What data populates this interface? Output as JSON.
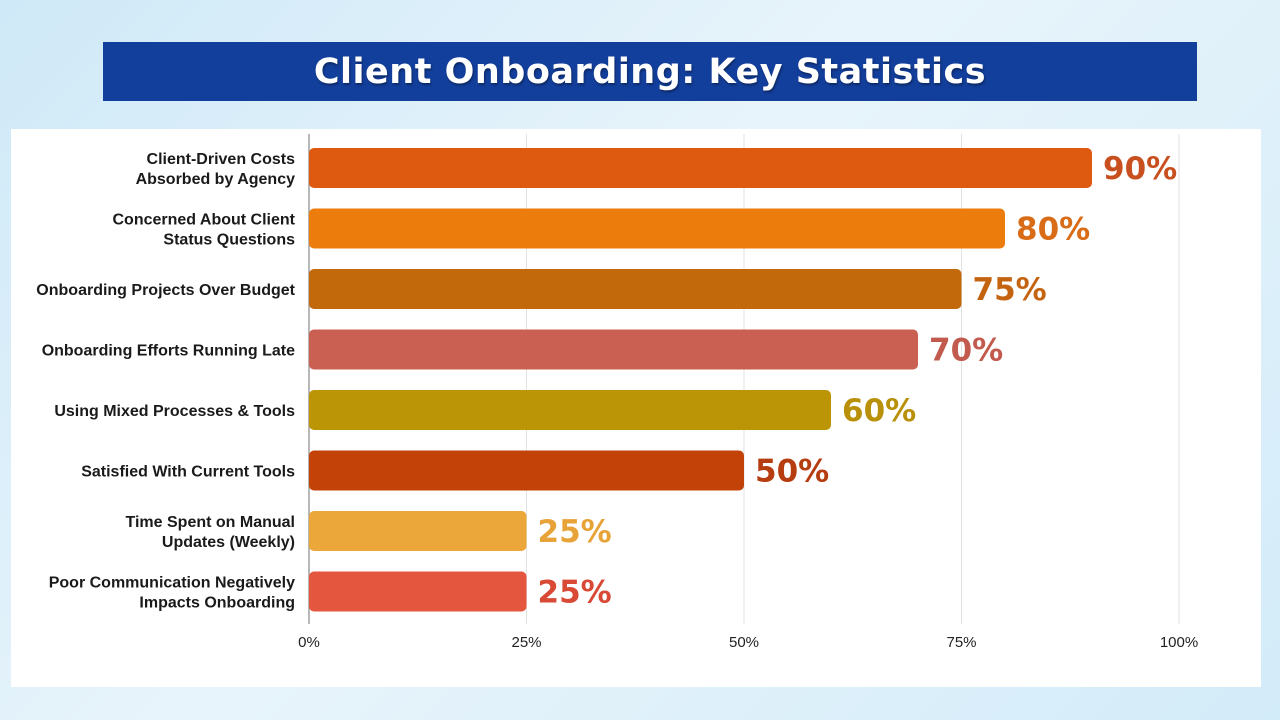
{
  "header": {
    "title": "Client Onboarding:  Key Statistics"
  },
  "chart_data": {
    "type": "bar",
    "orientation": "horizontal",
    "categories": [
      [
        "Client-Driven Costs",
        "Absorbed by Agency"
      ],
      [
        "Concerned About Client",
        "Status Questions"
      ],
      [
        "Onboarding Projects Over Budget"
      ],
      [
        "Onboarding Efforts Running Late"
      ],
      [
        "Using Mixed Processes & Tools"
      ],
      [
        "Satisfied With Current Tools"
      ],
      [
        "Time Spent on Manual",
        "Updates (Weekly)"
      ],
      [
        "Poor Communication Negatively",
        "Impacts Onboarding"
      ]
    ],
    "values": [
      90,
      80,
      75,
      70,
      60,
      50,
      25,
      25
    ],
    "value_labels": [
      "90%",
      "80%",
      "75%",
      "70%",
      "60%",
      "50%",
      "25%",
      "25%"
    ],
    "colors": [
      "#de5a10",
      "#ec7d0d",
      "#c2690b",
      "#c96052",
      "#bc9506",
      "#c24208",
      "#eba73a",
      "#e5563f"
    ],
    "label_colors": [
      "#c8501f",
      "#d96c17",
      "#c46410",
      "#c25a4e",
      "#b8900a",
      "#b53d10",
      "#e8a338",
      "#d84a36"
    ],
    "xlim": [
      0,
      100
    ],
    "xticks": [
      0,
      25,
      50,
      75,
      100
    ],
    "xtick_labels": [
      "0%",
      "25%",
      "50%",
      "75%",
      "100%"
    ],
    "grid": true,
    "title": "Client Onboarding:  Key Statistics",
    "xlabel": "",
    "ylabel": ""
  }
}
